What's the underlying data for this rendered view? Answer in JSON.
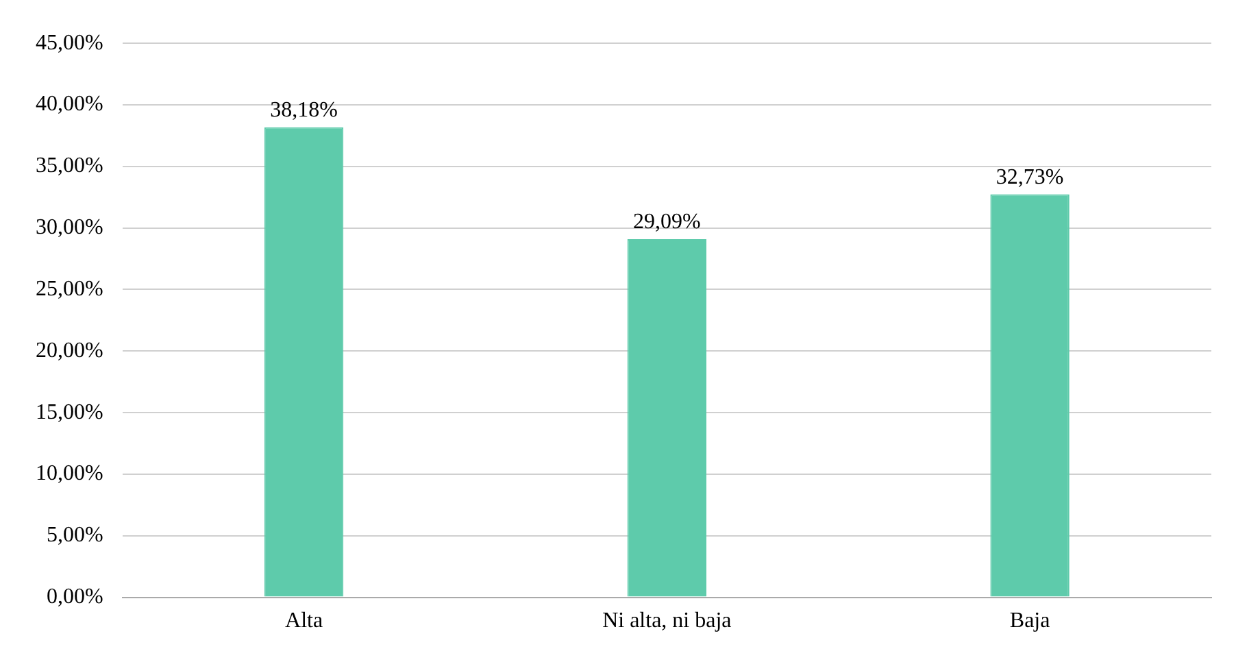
{
  "chart_data": {
    "type": "bar",
    "categories": [
      "Alta",
      "Ni alta, ni baja",
      "Baja"
    ],
    "values": [
      38.18,
      29.09,
      32.73
    ],
    "color": "#5ecbab",
    "value_labels": [
      "38,18%",
      "29,09%",
      "32,73%"
    ],
    "ylim": [
      0,
      45
    ],
    "yticks": [
      {
        "value": 0,
        "label": "0,00%"
      },
      {
        "value": 5,
        "label": "5,00%"
      },
      {
        "value": 10,
        "label": "10,00%"
      },
      {
        "value": 15,
        "label": "15,00%"
      },
      {
        "value": 20,
        "label": "20,00%"
      },
      {
        "value": 25,
        "label": "25,00%"
      },
      {
        "value": 30,
        "label": "30,00%"
      },
      {
        "value": 35,
        "label": "35,00%"
      },
      {
        "value": 40,
        "label": "40,00%"
      },
      {
        "value": 45,
        "label": "45,00%"
      }
    ],
    "grid": "y",
    "legend": false
  }
}
